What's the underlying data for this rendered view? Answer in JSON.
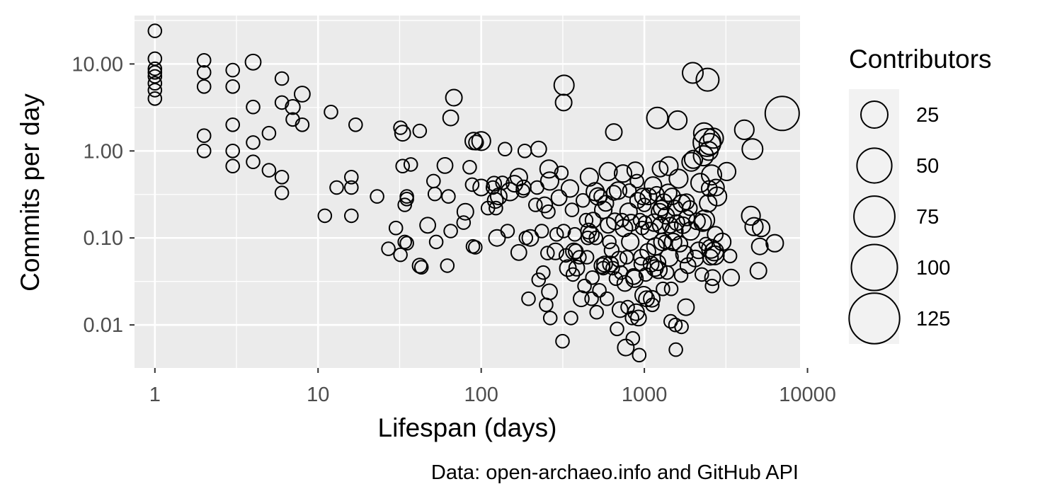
{
  "chart_data": {
    "type": "scatter",
    "title": "",
    "xlabel": "Lifespan (days)",
    "ylabel": "Commits per day",
    "x_scale": "log10",
    "y_scale": "log10",
    "xlim": [
      0.75,
      9000
    ],
    "ylim": [
      0.0032,
      36
    ],
    "x_ticks": [
      1,
      10,
      100,
      1000,
      10000
    ],
    "x_tick_labels": [
      "1",
      "10",
      "100",
      "1000",
      "10000"
    ],
    "y_ticks": [
      0.01,
      0.1,
      1,
      10
    ],
    "y_tick_labels": [
      "0.01",
      "0.10",
      "1.00",
      "10.00"
    ],
    "grid": true,
    "size_legend": {
      "title": "Contributors",
      "position": "right",
      "values": [
        25,
        50,
        75,
        100,
        125
      ],
      "labels": [
        "25",
        "50",
        "75",
        "100",
        "125"
      ]
    },
    "caption": "Data: open-archaeo.info and GitHub API",
    "colors": {
      "panel": "#ebebeb",
      "grid": "#ffffff",
      "point_stroke": "#000000",
      "legend_bg": "#f2f2f2"
    },
    "points": [
      [
        1,
        24,
        2
      ],
      [
        1,
        11.5,
        2
      ],
      [
        1,
        8.8,
        2
      ],
      [
        1,
        8,
        2
      ],
      [
        1,
        7.2,
        2
      ],
      [
        1,
        6,
        2
      ],
      [
        1,
        5,
        2
      ],
      [
        1,
        4,
        2
      ],
      [
        2,
        11,
        2
      ],
      [
        2,
        8,
        2
      ],
      [
        2,
        5.5,
        2
      ],
      [
        2,
        1.5,
        2
      ],
      [
        2,
        1,
        2
      ],
      [
        3,
        8.5,
        2
      ],
      [
        3,
        5.5,
        2
      ],
      [
        3,
        2,
        2
      ],
      [
        3,
        1,
        2
      ],
      [
        3,
        0.67,
        2
      ],
      [
        4,
        10.5,
        4
      ],
      [
        4,
        3.2,
        2
      ],
      [
        4,
        1.25,
        2
      ],
      [
        4,
        0.75,
        2
      ],
      [
        5,
        1.6,
        2
      ],
      [
        5,
        0.6,
        2
      ],
      [
        6,
        6.8,
        2
      ],
      [
        6,
        3.6,
        2
      ],
      [
        6,
        0.5,
        2
      ],
      [
        6,
        0.33,
        2
      ],
      [
        7,
        3.2,
        3
      ],
      [
        7,
        2.3,
        2
      ],
      [
        8,
        4.5,
        4
      ],
      [
        8,
        2,
        2
      ],
      [
        11,
        0.18,
        2
      ],
      [
        12,
        2.8,
        2
      ],
      [
        13,
        0.38,
        2
      ],
      [
        16,
        0.5,
        2
      ],
      [
        16,
        0.38,
        2
      ],
      [
        16,
        0.18,
        2
      ],
      [
        17,
        2,
        2
      ],
      [
        23,
        0.3,
        2
      ],
      [
        27,
        0.075,
        2
      ],
      [
        30,
        0.13,
        2
      ],
      [
        32,
        1.85,
        2
      ],
      [
        32,
        0.064,
        2
      ],
      [
        33,
        0.67,
        2
      ],
      [
        33,
        1.6,
        4
      ],
      [
        34,
        0.09,
        2
      ],
      [
        34,
        0.24,
        2
      ],
      [
        35,
        0.3,
        2
      ],
      [
        35,
        0.28,
        2
      ],
      [
        35,
        0.087,
        2
      ],
      [
        37,
        0.7,
        2
      ],
      [
        42,
        1.7,
        2
      ],
      [
        42,
        0.048,
        3
      ],
      [
        43,
        0.046,
        2
      ],
      [
        47,
        0.14,
        4
      ],
      [
        51,
        0.45,
        2
      ],
      [
        52,
        0.32,
        2
      ],
      [
        53,
        0.09,
        2
      ],
      [
        60,
        0.68,
        4
      ],
      [
        62,
        0.048,
        2
      ],
      [
        63,
        0.3,
        2
      ],
      [
        65,
        2.4,
        4
      ],
      [
        65,
        0.12,
        2
      ],
      [
        68,
        4.1,
        5
      ],
      [
        78,
        0.15,
        2
      ],
      [
        80,
        0.2,
        5
      ],
      [
        85,
        0.65,
        2
      ],
      [
        88,
        0.41,
        2
      ],
      [
        89,
        0.08,
        2
      ],
      [
        90,
        1.3,
        6
      ],
      [
        92,
        0.078,
        2
      ],
      [
        93,
        1.25,
        3
      ],
      [
        100,
        1.3,
        8
      ],
      [
        100,
        0.38,
        5
      ],
      [
        110,
        0.22,
        2
      ],
      [
        118,
        0.38,
        2
      ],
      [
        120,
        0.42,
        3
      ],
      [
        122,
        0.27,
        4
      ],
      [
        123,
        0.22,
        2
      ],
      [
        125,
        0.1,
        5
      ],
      [
        128,
        0.3,
        5
      ],
      [
        135,
        0.43,
        2
      ],
      [
        140,
        1.05,
        2
      ],
      [
        145,
        0.12,
        2
      ],
      [
        150,
        0.34,
        7
      ],
      [
        160,
        0.42,
        5
      ],
      [
        170,
        0.5,
        6
      ],
      [
        170,
        0.068,
        4
      ],
      [
        180,
        0.35,
        2
      ],
      [
        182,
        0.38,
        3
      ],
      [
        185,
        1,
        2
      ],
      [
        188,
        0.1,
        2
      ],
      [
        195,
        0.02,
        2
      ],
      [
        200,
        0.1,
        5
      ],
      [
        215,
        0.24,
        2
      ],
      [
        220,
        0.38,
        2
      ],
      [
        225,
        1.05,
        4
      ],
      [
        225,
        0.033,
        2
      ],
      [
        235,
        0.12,
        2
      ],
      [
        240,
        0.04,
        2
      ],
      [
        245,
        0.24,
        4
      ],
      [
        250,
        0.017,
        2
      ],
      [
        255,
        0.067,
        2
      ],
      [
        258,
        0.2,
        2
      ],
      [
        260,
        0.62,
        7
      ],
      [
        262,
        0.024,
        4
      ],
      [
        263,
        0.45,
        7
      ],
      [
        265,
        0.012,
        2
      ],
      [
        285,
        0.07,
        5
      ],
      [
        290,
        0.11,
        2
      ],
      [
        300,
        0.29,
        4
      ],
      [
        310,
        0.56,
        2
      ],
      [
        315,
        0.0065,
        2
      ],
      [
        320,
        0.12,
        2
      ],
      [
        320,
        3.6,
        5
      ],
      [
        322,
        5.7,
        10
      ],
      [
        330,
        0.063,
        2
      ],
      [
        340,
        0.045,
        5
      ],
      [
        350,
        0.37,
        6
      ],
      [
        355,
        0.012,
        2
      ],
      [
        360,
        0.21,
        2
      ],
      [
        365,
        0.038,
        2
      ],
      [
        370,
        0.07,
        5
      ],
      [
        375,
        0.11,
        2
      ],
      [
        380,
        0.07,
        3
      ],
      [
        385,
        0.045,
        4
      ],
      [
        400,
        0.06,
        2
      ],
      [
        410,
        0.02,
        4
      ],
      [
        420,
        0.27,
        2
      ],
      [
        430,
        0.028,
        2
      ],
      [
        440,
        0.16,
        2
      ],
      [
        445,
        0.06,
        2
      ],
      [
        450,
        0.1,
        2
      ],
      [
        455,
        0.12,
        4
      ],
      [
        460,
        0.5,
        7
      ],
      [
        470,
        0.11,
        5
      ],
      [
        475,
        0.02,
        2
      ],
      [
        480,
        0.035,
        2
      ],
      [
        485,
        0.16,
        4
      ],
      [
        500,
        0.34,
        7
      ],
      [
        505,
        0.1,
        2
      ],
      [
        510,
        0.014,
        2
      ],
      [
        520,
        0.3,
        6
      ],
      [
        530,
        0.025,
        2
      ],
      [
        540,
        0.3,
        2
      ],
      [
        550,
        0.048,
        4
      ],
      [
        560,
        0.045,
        2
      ],
      [
        560,
        0.21,
        6
      ],
      [
        570,
        0.05,
        4
      ],
      [
        580,
        0.25,
        4
      ],
      [
        590,
        0.02,
        2
      ],
      [
        600,
        0.14,
        4
      ],
      [
        600,
        0.58,
        7
      ],
      [
        610,
        0.09,
        2
      ],
      [
        620,
        0.05,
        4
      ],
      [
        630,
        0.072,
        3
      ],
      [
        640,
        0.045,
        2
      ],
      [
        650,
        0.33,
        3
      ],
      [
        650,
        1.65,
        5
      ],
      [
        660,
        0.155,
        5
      ],
      [
        670,
        0.034,
        2
      ],
      [
        680,
        0.009,
        2
      ],
      [
        690,
        0.35,
        6
      ],
      [
        700,
        0.057,
        4
      ],
      [
        710,
        0.015,
        4
      ],
      [
        720,
        0.04,
        2
      ],
      [
        730,
        0.16,
        2
      ],
      [
        740,
        0.55,
        6
      ],
      [
        750,
        0.13,
        6
      ],
      [
        760,
        0.03,
        4
      ],
      [
        770,
        0.0055,
        5
      ],
      [
        780,
        0.06,
        2
      ],
      [
        790,
        0.016,
        2
      ],
      [
        800,
        0.2,
        6
      ],
      [
        810,
        0.35,
        2
      ],
      [
        820,
        0.09,
        6
      ],
      [
        830,
        0.15,
        5
      ],
      [
        840,
        0.012,
        2
      ],
      [
        850,
        0.007,
        2
      ],
      [
        860,
        0.036,
        4
      ],
      [
        870,
        0.034,
        6
      ],
      [
        880,
        0.6,
        5
      ],
      [
        890,
        0.014,
        5
      ],
      [
        900,
        0.45,
        2
      ],
      [
        910,
        0.27,
        4
      ],
      [
        920,
        0.012,
        4
      ],
      [
        930,
        0.0045,
        2
      ],
      [
        940,
        0.16,
        2
      ],
      [
        950,
        0.05,
        2
      ],
      [
        960,
        0.06,
        4
      ],
      [
        970,
        0.13,
        2
      ],
      [
        980,
        0.3,
        5
      ],
      [
        990,
        0.022,
        6
      ],
      [
        1000,
        0.24,
        2
      ],
      [
        1010,
        0.15,
        2
      ],
      [
        1020,
        0.038,
        2
      ],
      [
        1030,
        0.02,
        4
      ],
      [
        1050,
        0.07,
        4
      ],
      [
        1060,
        0.3,
        5
      ],
      [
        1080,
        0.12,
        6
      ],
      [
        1100,
        0.05,
        4
      ],
      [
        1110,
        0.02,
        5
      ],
      [
        1120,
        0.017,
        2
      ],
      [
        1130,
        0.4,
        6
      ],
      [
        1150,
        0.15,
        6
      ],
      [
        1160,
        0.045,
        5
      ],
      [
        1170,
        0.08,
        6
      ],
      [
        1190,
        0.32,
        3
      ],
      [
        1200,
        2.4,
        12
      ],
      [
        1210,
        0.052,
        4
      ],
      [
        1220,
        0.043,
        6
      ],
      [
        1240,
        0.2,
        5
      ],
      [
        1250,
        0.62,
        4
      ],
      [
        1260,
        0.14,
        5
      ],
      [
        1270,
        0.22,
        4
      ],
      [
        1290,
        0.09,
        6
      ],
      [
        1300,
        0.026,
        2
      ],
      [
        1320,
        0.26,
        4
      ],
      [
        1340,
        0.09,
        2
      ],
      [
        1360,
        0.18,
        5
      ],
      [
        1380,
        0.04,
        2
      ],
      [
        1400,
        0.33,
        6
      ],
      [
        1410,
        0.67,
        8
      ],
      [
        1420,
        0.06,
        7
      ],
      [
        1440,
        0.14,
        4
      ],
      [
        1450,
        0.011,
        2
      ],
      [
        1460,
        0.026,
        2
      ],
      [
        1480,
        0.3,
        5
      ],
      [
        1500,
        0.09,
        6
      ],
      [
        1520,
        0.12,
        7
      ],
      [
        1540,
        0.22,
        4
      ],
      [
        1550,
        0.01,
        2
      ],
      [
        1560,
        0.0052,
        2
      ],
      [
        1580,
        0.15,
        4
      ],
      [
        1600,
        2.25,
        8
      ],
      [
        1620,
        0.48,
        8
      ],
      [
        1650,
        0.085,
        4
      ],
      [
        1680,
        0.037,
        2
      ],
      [
        1690,
        0.0095,
        2
      ],
      [
        1700,
        0.25,
        6
      ],
      [
        1720,
        0.14,
        5
      ],
      [
        1760,
        0.065,
        6
      ],
      [
        1800,
        0.016,
        5
      ],
      [
        1810,
        0.26,
        4
      ],
      [
        1820,
        0.17,
        4
      ],
      [
        1850,
        0.048,
        4
      ],
      [
        1900,
        0.22,
        3
      ],
      [
        1920,
        0.12,
        7
      ],
      [
        1940,
        0.75,
        8
      ],
      [
        1980,
        7.9,
        11
      ],
      [
        2000,
        0.8,
        7
      ],
      [
        2050,
        0.058,
        5
      ],
      [
        2100,
        0.155,
        5
      ],
      [
        2150,
        0.072,
        5
      ],
      [
        2200,
        0.43,
        8
      ],
      [
        2250,
        0.038,
        2
      ],
      [
        2280,
        0.15,
        6
      ],
      [
        2300,
        0.88,
        10
      ],
      [
        2320,
        1.6,
        11
      ],
      [
        2340,
        0.16,
        10
      ],
      [
        2380,
        0.085,
        2
      ],
      [
        2420,
        1.25,
        27
      ],
      [
        2440,
        6.6,
        15
      ],
      [
        2460,
        0.25,
        6
      ],
      [
        2480,
        1,
        8
      ],
      [
        2500,
        0.37,
        4
      ],
      [
        2520,
        1.2,
        12
      ],
      [
        2540,
        0.06,
        4
      ],
      [
        2560,
        0.075,
        8
      ],
      [
        2580,
        0.53,
        10
      ],
      [
        2600,
        0.028,
        2
      ],
      [
        2620,
        0.035,
        4
      ],
      [
        2650,
        1.4,
        10
      ],
      [
        2680,
        0.07,
        8
      ],
      [
        2700,
        0.063,
        8
      ],
      [
        2720,
        0.11,
        4
      ],
      [
        2750,
        0.38,
        5
      ],
      [
        2800,
        0.3,
        8
      ],
      [
        3000,
        0.09,
        6
      ],
      [
        3200,
        0.58,
        7
      ],
      [
        3350,
        0.062,
        2
      ],
      [
        3400,
        0.035,
        5
      ],
      [
        4100,
        1.75,
        9
      ],
      [
        4500,
        0.18,
        8
      ],
      [
        4600,
        1.05,
        11
      ],
      [
        4700,
        0.135,
        7
      ],
      [
        5000,
        0.042,
        5
      ],
      [
        5100,
        0.08,
        5
      ],
      [
        5200,
        0.13,
        6
      ],
      [
        6300,
        0.087,
        6
      ],
      [
        7000,
        2.7,
        47
      ]
    ]
  }
}
